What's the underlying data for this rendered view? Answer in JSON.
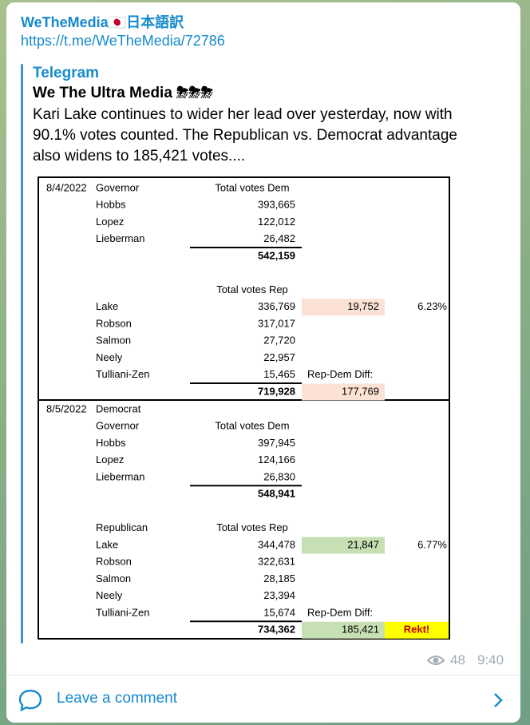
{
  "post": {
    "channel": "WeTheMedia🇯🇵日本語訳",
    "link": "https://t.me/WeTheMedia/72786",
    "source": "Telegram",
    "author": "We The Ultra Media ⛈⛈⛈",
    "text_lines": [
      "Kari Lake continues to wider her lead over yesterday, now with",
      "90.1% votes counted. The Republican vs. Democrat advantage",
      "also widens to 185,421 votes...."
    ],
    "views": "48",
    "time": "9:40",
    "comment": "Leave a comment"
  },
  "table": {
    "blocks": [
      {
        "highlight": "#fbe2d5",
        "rows": [
          {
            "date": "8/4/2022",
            "name": "Governor",
            "header": "Total votes Dem"
          },
          {
            "name": "Hobbs",
            "votes": "393,665"
          },
          {
            "name": "Lopez",
            "votes": "122,012"
          },
          {
            "name": "Lieberman",
            "votes": "26,482"
          },
          {
            "total": "542,159"
          },
          {},
          {
            "header": "Total votes Rep"
          },
          {
            "name": "Lake",
            "votes": "336,769",
            "diff": "19,752",
            "pct": "6.23%"
          },
          {
            "name": "Robson",
            "votes": "317,017"
          },
          {
            "name": "Salmon",
            "votes": "27,720"
          },
          {
            "name": "Neely",
            "votes": "22,957"
          },
          {
            "name": "Tulliani-Zen",
            "votes": "15,465",
            "diff_label": "Rep-Dem Diff:"
          },
          {
            "total": "719,928",
            "diff": "177,769"
          }
        ]
      },
      {
        "highlight": "#c6e0b4",
        "rows": [
          {
            "date": "8/5/2022",
            "name": "Democrat"
          },
          {
            "name": "Governor",
            "header": "Total votes Dem"
          },
          {
            "name": "Hobbs",
            "votes": "397,945"
          },
          {
            "name": "Lopez",
            "votes": "124,166"
          },
          {
            "name": "Lieberman",
            "votes": "26,830"
          },
          {
            "total": "548,941"
          },
          {},
          {
            "name": "Republican",
            "header": "Total votes Rep"
          },
          {
            "name": "Lake",
            "votes": "344,478",
            "diff": "21,847",
            "pct": "6.77%"
          },
          {
            "name": "Robson",
            "votes": "322,631"
          },
          {
            "name": "Salmon",
            "votes": "28,185"
          },
          {
            "name": "Neely",
            "votes": "23,394"
          },
          {
            "name": "Tulliani-Zen",
            "votes": "15,674",
            "diff_label": "Rep-Dem Diff:"
          },
          {
            "total": "734,362",
            "diff": "185,421",
            "note": "Rekt!"
          }
        ]
      }
    ]
  }
}
